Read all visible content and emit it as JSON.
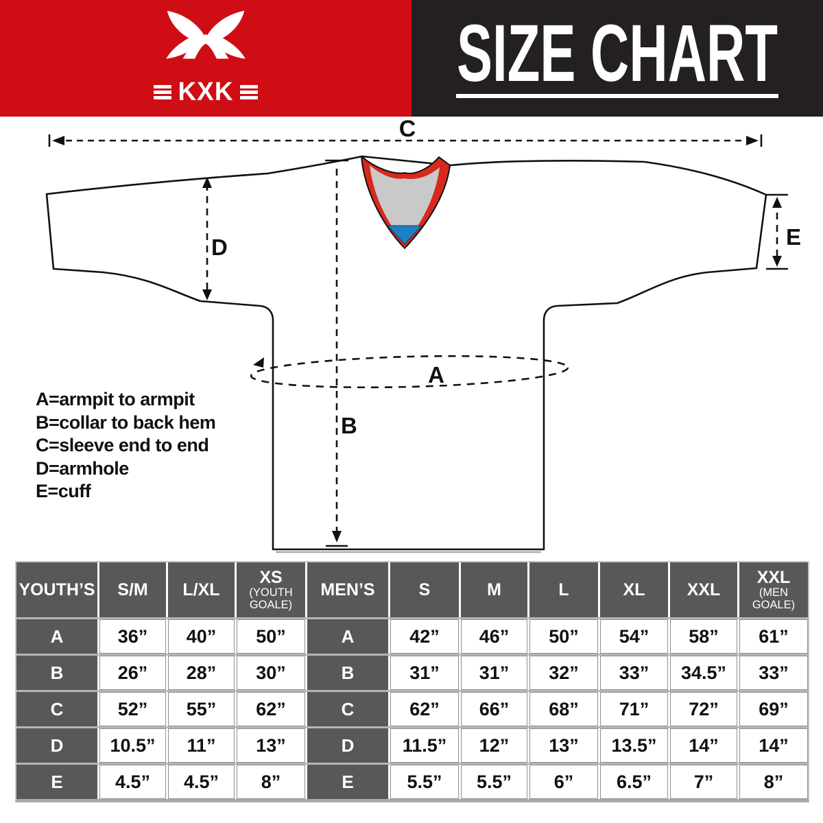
{
  "header": {
    "brand": {
      "wordmark": "KXK",
      "logo_icon": "kxk-butterfly-x-logo"
    },
    "title": "SIZE CHART",
    "colors": {
      "brand_red": "#CF0D15",
      "band_black": "#242021"
    }
  },
  "diagram": {
    "labels": {
      "a": "A",
      "b": "B",
      "c": "C",
      "d": "D",
      "e": "E"
    },
    "legend": [
      "A=armpit to armpit",
      "B=collar to back hem",
      "C=sleeve end to end",
      "D=armhole",
      "E=cuff"
    ],
    "colors": {
      "collar_red": "#D8291F",
      "collar_gray": "#C9C9C9",
      "collar_blue": "#1C80C5",
      "jersey_fill": "#FFFFFF",
      "line_color": "#111111"
    }
  },
  "table": {
    "columns": [
      {
        "label": "YOUTH’S",
        "type": "label"
      },
      {
        "label": "S/M"
      },
      {
        "label": "L/XL"
      },
      {
        "label": "XS",
        "sub": "(YOUTH GOALE)"
      },
      {
        "label": "MEN’S",
        "type": "label"
      },
      {
        "label": "S"
      },
      {
        "label": "M"
      },
      {
        "label": "L"
      },
      {
        "label": "XL"
      },
      {
        "label": "XXL"
      },
      {
        "label": "XXL",
        "sub": "(MEN GOALE)"
      }
    ],
    "rows": [
      {
        "cells": [
          "A",
          "36”",
          "40”",
          "50”",
          "A",
          "42”",
          "46”",
          "50”",
          "54”",
          "58”",
          "61”"
        ]
      },
      {
        "cells": [
          "B",
          "26”",
          "28”",
          "30”",
          "B",
          "31”",
          "31”",
          "32”",
          "33”",
          "34.5”",
          "33”"
        ]
      },
      {
        "cells": [
          "C",
          "52”",
          "55”",
          "62”",
          "C",
          "62”",
          "66”",
          "68”",
          "71”",
          "72”",
          "69”"
        ]
      },
      {
        "cells": [
          "D",
          "10.5”",
          "11”",
          "13”",
          "D",
          "11.5”",
          "12”",
          "13”",
          "13.5”",
          "14”",
          "14”"
        ]
      },
      {
        "cells": [
          "E",
          "4.5”",
          "4.5”",
          "8”",
          "E",
          "5.5”",
          "5.5”",
          "6”",
          "6.5”",
          "7”",
          "8”"
        ]
      }
    ]
  },
  "chart_data": {
    "type": "table",
    "title": "SIZE CHART",
    "measurements": [
      "A",
      "B",
      "C",
      "D",
      "E"
    ],
    "youth": {
      "sizes": [
        "S/M",
        "L/XL",
        "XS (YOUTH GOALE)"
      ],
      "A": [
        "36”",
        "40”",
        "50”"
      ],
      "B": [
        "26”",
        "28”",
        "30”"
      ],
      "C": [
        "52”",
        "55”",
        "62”"
      ],
      "D": [
        "10.5”",
        "11”",
        "13”"
      ],
      "E": [
        "4.5”",
        "4.5”",
        "8”"
      ]
    },
    "men": {
      "sizes": [
        "S",
        "M",
        "L",
        "XL",
        "XXL",
        "XXL (MEN GOALE)"
      ],
      "A": [
        "42”",
        "46”",
        "50”",
        "54”",
        "58”",
        "61”"
      ],
      "B": [
        "31”",
        "31”",
        "32”",
        "33”",
        "34.5”",
        "33”"
      ],
      "C": [
        "62”",
        "66”",
        "68”",
        "71”",
        "72”",
        "69”"
      ],
      "D": [
        "11.5”",
        "12”",
        "13”",
        "13.5”",
        "14”",
        "14”"
      ],
      "E": [
        "5.5”",
        "5.5”",
        "6”",
        "6.5”",
        "7”",
        "8”"
      ]
    }
  }
}
